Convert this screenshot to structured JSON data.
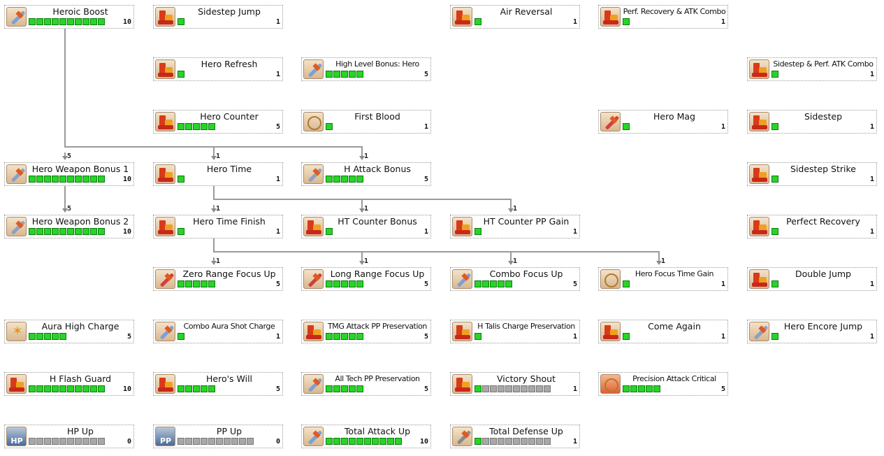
{
  "tree_title": "",
  "nodes": [
    {
      "id": "heroic-boost",
      "name": "Heroic Boost",
      "pips": 10,
      "filled": 10,
      "max_label": "10",
      "icon": "sword-icon",
      "icon_color": "#7aa0d8"
    },
    {
      "id": "sidestep-jump",
      "name": "Sidestep Jump",
      "pips": 1,
      "filled": 1,
      "max_label": "1",
      "icon": "boots-icon",
      "icon_color": "#e04020"
    },
    {
      "id": "air-reversal",
      "name": "Air Reversal",
      "pips": 1,
      "filled": 1,
      "max_label": "1",
      "icon": "boots-icon",
      "icon_color": "#e04020"
    },
    {
      "id": "perf-recovery-atk-combo",
      "name": "Perf. Recovery & ATK Combo",
      "pips": 1,
      "filled": 1,
      "max_label": "1",
      "icon": "boots-icon",
      "icon_color": "#e04020"
    },
    {
      "id": "hero-refresh",
      "name": "Hero Refresh",
      "pips": 1,
      "filled": 1,
      "max_label": "1",
      "icon": "refresh-icon",
      "icon_color": "#e08a20"
    },
    {
      "id": "high-level-bonus-hero",
      "name": "High Level Bonus: Hero",
      "pips": 5,
      "filled": 5,
      "max_label": "5",
      "icon": "sword-icon",
      "icon_color": "#7aa0d8"
    },
    {
      "id": "sidestep-perf-atk-combo",
      "name": "Sidestep & Perf. ATK Combo",
      "pips": 1,
      "filled": 1,
      "max_label": "1",
      "icon": "boots-icon",
      "icon_color": "#e04020"
    },
    {
      "id": "hero-counter",
      "name": "Hero Counter",
      "pips": 5,
      "filled": 5,
      "max_label": "5",
      "icon": "boots-icon",
      "icon_color": "#e04020"
    },
    {
      "id": "first-blood",
      "name": "First Blood",
      "pips": 1,
      "filled": 1,
      "max_label": "1",
      "icon": "target-icon",
      "icon_color": "#c08040"
    },
    {
      "id": "hero-mag",
      "name": "Hero Mag",
      "pips": 1,
      "filled": 1,
      "max_label": "1",
      "icon": "mag-icon",
      "icon_color": "#d04040"
    },
    {
      "id": "sidestep",
      "name": "Sidestep",
      "pips": 1,
      "filled": 1,
      "max_label": "1",
      "icon": "boots-icon",
      "icon_color": "#e04020"
    },
    {
      "id": "hero-weapon-bonus-1",
      "name": "Hero Weapon Bonus 1",
      "pips": 10,
      "filled": 10,
      "max_label": "10",
      "icon": "weapon-icon",
      "icon_color": "#8aa0c8"
    },
    {
      "id": "hero-time",
      "name": "Hero Time",
      "pips": 1,
      "filled": 1,
      "max_label": "1",
      "icon": "crown-icon",
      "icon_color": "#e06a10"
    },
    {
      "id": "h-attack-bonus",
      "name": "H Attack Bonus",
      "pips": 5,
      "filled": 5,
      "max_label": "5",
      "icon": "weapon-icon",
      "icon_color": "#8aa0c8"
    },
    {
      "id": "sidestep-strike",
      "name": "Sidestep Strike",
      "pips": 1,
      "filled": 1,
      "max_label": "1",
      "icon": "boots-icon",
      "icon_color": "#e04020"
    },
    {
      "id": "hero-weapon-bonus-2",
      "name": "Hero Weapon Bonus 2",
      "pips": 10,
      "filled": 10,
      "max_label": "10",
      "icon": "weapon-icon",
      "icon_color": "#8aa0c8"
    },
    {
      "id": "hero-time-finish",
      "name": "Hero Time Finish",
      "pips": 1,
      "filled": 1,
      "max_label": "1",
      "icon": "crown-icon",
      "icon_color": "#e06a10"
    },
    {
      "id": "ht-counter-bonus",
      "name": "HT Counter Bonus",
      "pips": 1,
      "filled": 1,
      "max_label": "1",
      "icon": "crown-icon",
      "icon_color": "#e06a10"
    },
    {
      "id": "ht-counter-pp-gain",
      "name": "HT Counter PP Gain",
      "pips": 1,
      "filled": 1,
      "max_label": "1",
      "icon": "crown-icon",
      "icon_color": "#e06a10"
    },
    {
      "id": "perfect-recovery",
      "name": "Perfect Recovery",
      "pips": 1,
      "filled": 1,
      "max_label": "1",
      "icon": "boots-icon",
      "icon_color": "#e04020"
    },
    {
      "id": "zero-range-focus-up",
      "name": "Zero Range Focus Up",
      "pips": 5,
      "filled": 5,
      "max_label": "5",
      "icon": "sword-cross-icon",
      "icon_color": "#d04040"
    },
    {
      "id": "long-range-focus-up",
      "name": "Long Range Focus Up",
      "pips": 5,
      "filled": 5,
      "max_label": "5",
      "icon": "gun-icon",
      "icon_color": "#d04040"
    },
    {
      "id": "combo-focus-up",
      "name": "Combo Focus Up",
      "pips": 5,
      "filled": 5,
      "max_label": "5",
      "icon": "sword-icon",
      "icon_color": "#7aa0d8"
    },
    {
      "id": "hero-focus-time-gain",
      "name": "Hero Focus Time Gain",
      "pips": 1,
      "filled": 1,
      "max_label": "1",
      "icon": "gear-icon",
      "icon_color": "#e05020"
    },
    {
      "id": "double-jump",
      "name": "Double Jump",
      "pips": 1,
      "filled": 1,
      "max_label": "1",
      "icon": "boots-icon",
      "icon_color": "#e04020"
    },
    {
      "id": "aura-high-charge",
      "name": "Aura High Charge",
      "pips": 5,
      "filled": 5,
      "max_label": "5",
      "icon": "star-icon",
      "icon_color": "#e0a010"
    },
    {
      "id": "combo-aura-shot-charge",
      "name": "Combo Aura Shot Charge",
      "pips": 1,
      "filled": 1,
      "max_label": "1",
      "icon": "sword-icon",
      "icon_color": "#7aa0d8"
    },
    {
      "id": "tmg-attack-pp-preservation",
      "name": "TMG Attack PP Preservation",
      "pips": 5,
      "filled": 5,
      "max_label": "5",
      "icon": "pp-icon",
      "icon_color": "#5a86c8"
    },
    {
      "id": "h-talis-charge-preservation",
      "name": "H Talis Charge Preservation",
      "pips": 1,
      "filled": 1,
      "max_label": "1",
      "icon": "talis-icon",
      "icon_color": "#e0a020"
    },
    {
      "id": "come-again",
      "name": "Come Again",
      "pips": 1,
      "filled": 1,
      "max_label": "1",
      "icon": "hand-icon",
      "icon_color": "#e0a020"
    },
    {
      "id": "hero-encore-jump",
      "name": "Hero Encore Jump",
      "pips": 1,
      "filled": 1,
      "max_label": "1",
      "icon": "weapon-icon",
      "icon_color": "#8aa0c8"
    },
    {
      "id": "h-flash-guard",
      "name": "H Flash Guard",
      "pips": 10,
      "filled": 10,
      "max_label": "10",
      "icon": "shield-icon",
      "icon_color": "#8a8a8a"
    },
    {
      "id": "heros-will",
      "name": "Hero's Will",
      "pips": 5,
      "filled": 5,
      "max_label": "5",
      "icon": "will-icon",
      "icon_color": "#e04020"
    },
    {
      "id": "all-tech-pp-preservation",
      "name": "All Tech PP Preservation",
      "pips": 5,
      "filled": 5,
      "max_label": "5",
      "icon": "pp-sword-icon",
      "icon_color": "#7aa0d8"
    },
    {
      "id": "victory-shout",
      "name": "Victory Shout",
      "pips": 10,
      "filled": 1,
      "max_label": "1",
      "icon": "pp-wave-icon",
      "icon_color": "#5a86c8"
    },
    {
      "id": "precision-attack-critical",
      "name": "Precision Attack Critical",
      "pips": 5,
      "filled": 5,
      "max_label": "5",
      "icon": "crit-icon",
      "icon_color": "#e05020"
    },
    {
      "id": "hp-up",
      "name": "HP Up",
      "pips": 10,
      "filled": 0,
      "max_label": "0",
      "icon": "hp-icon",
      "icon_color": "#5a7aa8"
    },
    {
      "id": "pp-up",
      "name": "PP Up",
      "pips": 10,
      "filled": 0,
      "max_label": "0",
      "icon": "pp-block-icon",
      "icon_color": "#5a7aa8"
    },
    {
      "id": "total-attack-up",
      "name": "Total Attack Up",
      "pips": 10,
      "filled": 10,
      "max_label": "10",
      "icon": "sword-icon",
      "icon_color": "#7aa0d8"
    },
    {
      "id": "total-defense-up",
      "name": "Total Defense Up",
      "pips": 10,
      "filled": 1,
      "max_label": "1",
      "icon": "defense-icon",
      "icon_color": "#8a8a8a"
    }
  ],
  "requirements": [
    {
      "to": "hero-weapon-bonus-1",
      "level": "5"
    },
    {
      "to": "hero-time",
      "level": "1"
    },
    {
      "to": "h-attack-bonus",
      "level": "1"
    },
    {
      "to": "hero-weapon-bonus-2",
      "level": "5"
    },
    {
      "to": "hero-time-finish",
      "level": "1"
    },
    {
      "to": "ht-counter-bonus",
      "level": "1"
    },
    {
      "to": "ht-counter-pp-gain",
      "level": "1"
    },
    {
      "to": "zero-range-focus-up",
      "level": "1"
    },
    {
      "to": "long-range-focus-up",
      "level": "1"
    },
    {
      "to": "combo-focus-up",
      "level": "1"
    },
    {
      "to": "hero-focus-time-gain",
      "level": "1"
    }
  ],
  "colors": {
    "pip_filled": "#28d428",
    "pip_empty": "#a8a8a8",
    "connector": "#9a9a9a"
  }
}
